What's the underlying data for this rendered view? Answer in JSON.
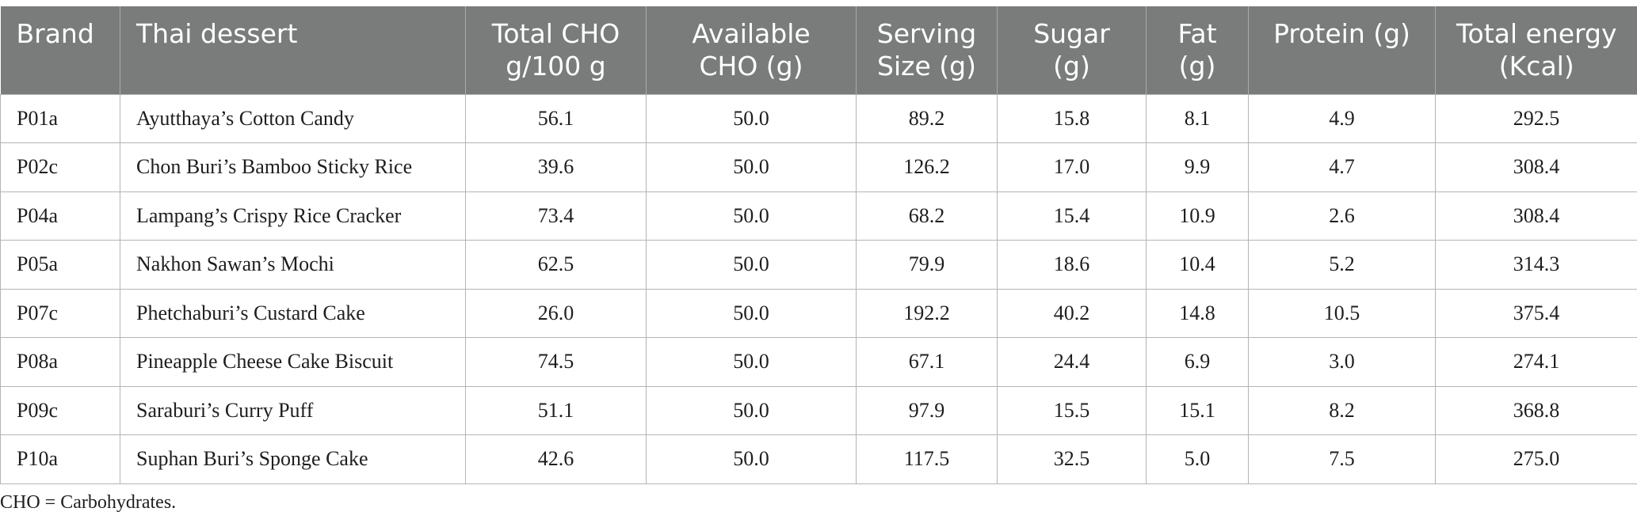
{
  "table": {
    "columns": [
      "Brand",
      "Thai dessert",
      "Total CHO g/100 g",
      "Available CHO (g)",
      "Serving Size (g)",
      "Sugar (g)",
      "Fat (g)",
      "Protein (g)",
      "Total energy (Kcal)"
    ],
    "rows": [
      [
        "P01a",
        "Ayutthaya’s Cotton Candy",
        "56.1",
        "50.0",
        "89.2",
        "15.8",
        "8.1",
        "4.9",
        "292.5"
      ],
      [
        "P02c",
        "Chon Buri’s Bamboo Sticky Rice",
        "39.6",
        "50.0",
        "126.2",
        "17.0",
        "9.9",
        "4.7",
        "308.4"
      ],
      [
        "P04a",
        "Lampang’s Crispy Rice Cracker",
        "73.4",
        "50.0",
        "68.2",
        "15.4",
        "10.9",
        "2.6",
        "308.4"
      ],
      [
        "P05a",
        "Nakhon Sawan’s Mochi",
        "62.5",
        "50.0",
        "79.9",
        "18.6",
        "10.4",
        "5.2",
        "314.3"
      ],
      [
        "P07c",
        "Phetchaburi’s Custard Cake",
        "26.0",
        "50.0",
        "192.2",
        "40.2",
        "14.8",
        "10.5",
        "375.4"
      ],
      [
        "P08a",
        "Pineapple Cheese Cake Biscuit",
        "74.5",
        "50.0",
        "67.1",
        "24.4",
        "6.9",
        "3.0",
        "274.1"
      ],
      [
        "P09c",
        "Saraburi’s Curry Puff",
        "51.1",
        "50.0",
        "97.9",
        "15.5",
        "15.1",
        "8.2",
        "368.8"
      ],
      [
        "P10a",
        "Suphan Buri’s Sponge Cake",
        "42.6",
        "50.0",
        "117.5",
        "32.5",
        "5.0",
        "7.5",
        "275.0"
      ]
    ]
  },
  "footnote": "CHO = Carbohydrates.",
  "colors": {
    "header_bg": "#7a7c7b",
    "header_text": "#ffffff",
    "grid": "#b4b4b4"
  }
}
